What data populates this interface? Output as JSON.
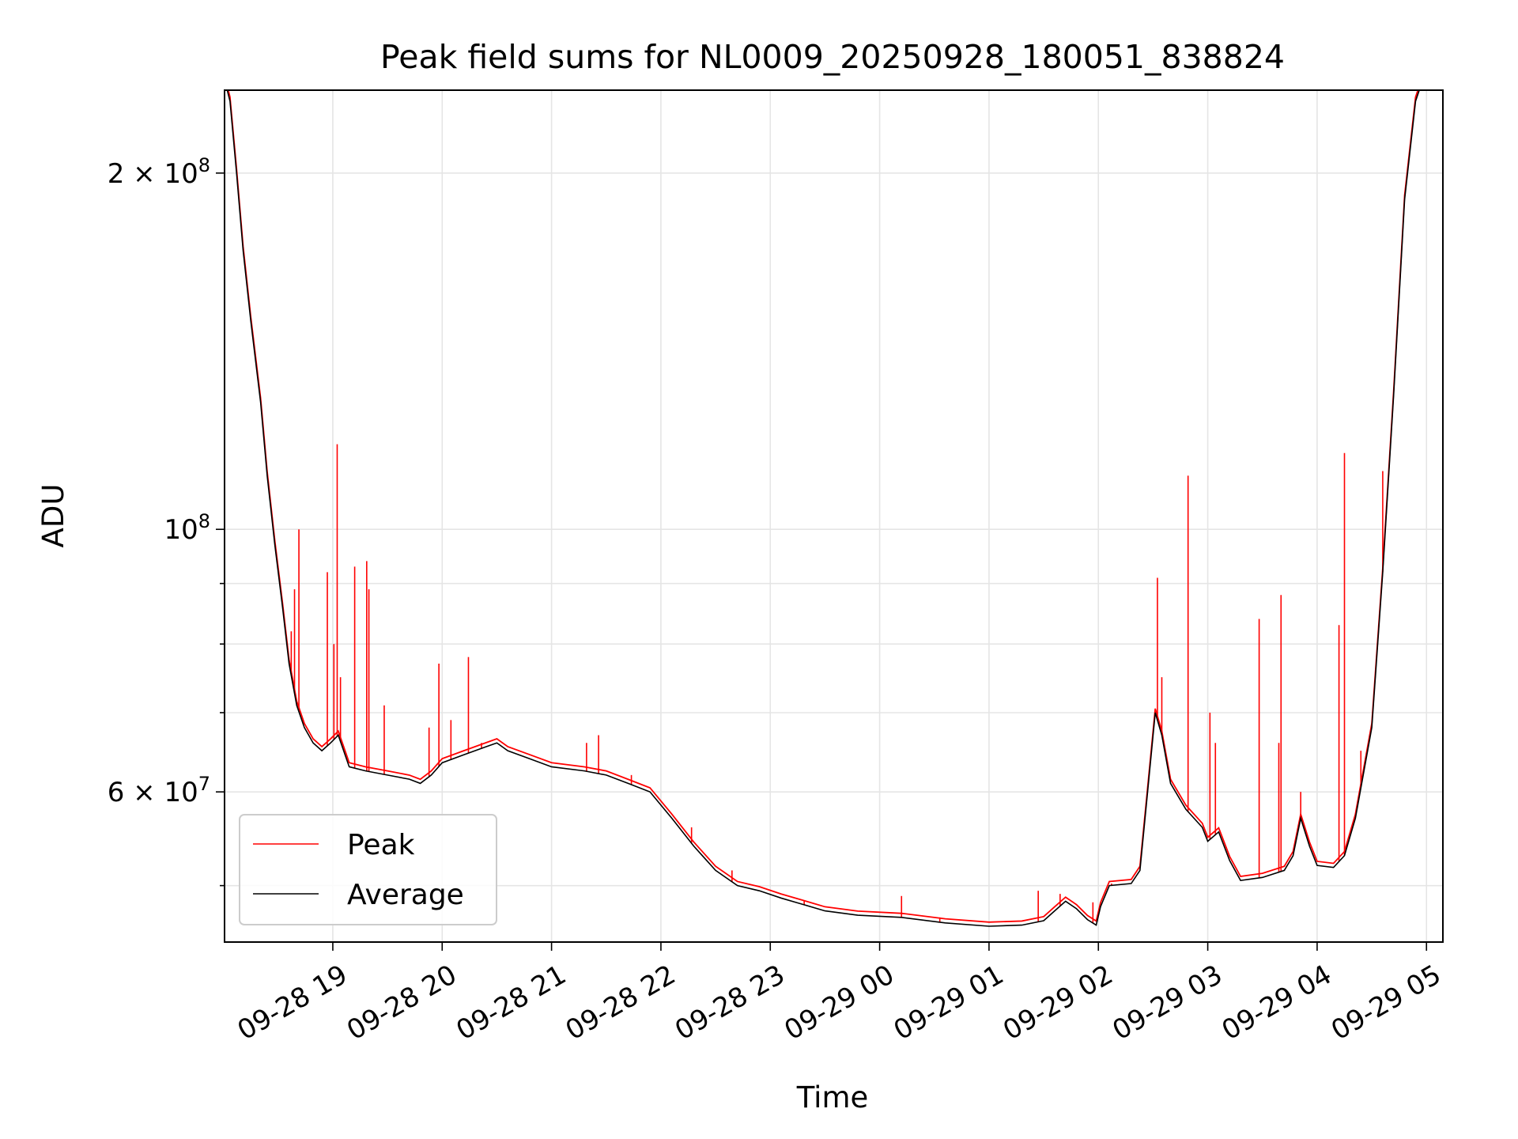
{
  "chart_data": {
    "type": "line",
    "title": "Peak field sums for NL0009_20250928_180051_838824",
    "xlabel": "Time",
    "ylabel": "ADU",
    "y_scale": "log",
    "ylim": [
      44800000,
      235000000
    ],
    "xlim_hours": [
      -0.99,
      10.15
    ],
    "x_ticks": [
      {
        "hour": 0,
        "label": "09-28 19"
      },
      {
        "hour": 1,
        "label": "09-28 20"
      },
      {
        "hour": 2,
        "label": "09-28 21"
      },
      {
        "hour": 3,
        "label": "09-28 22"
      },
      {
        "hour": 4,
        "label": "09-28 23"
      },
      {
        "hour": 5,
        "label": "09-29 00"
      },
      {
        "hour": 6,
        "label": "09-29 01"
      },
      {
        "hour": 7,
        "label": "09-29 02"
      },
      {
        "hour": 8,
        "label": "09-29 03"
      },
      {
        "hour": 9,
        "label": "09-29 04"
      },
      {
        "hour": 10,
        "label": "09-29 05"
      }
    ],
    "y_major_ticks": [
      {
        "value": 60000000,
        "base": "6 × 10",
        "exp": "7"
      },
      {
        "value": 100000000,
        "base": "10",
        "exp": "8"
      },
      {
        "value": 200000000,
        "base": "2 × 10",
        "exp": "8"
      }
    ],
    "y_minor_ticks": [
      50000000,
      70000000,
      80000000,
      90000000
    ],
    "x_hour_origin": "09-28 19:00",
    "series": [
      {
        "name": "Peak",
        "color": "#ff0000",
        "spikes": [
          [
            -0.38,
            82000000
          ],
          [
            -0.35,
            89000000
          ],
          [
            -0.31,
            100000000
          ],
          [
            -0.27,
            69000000
          ],
          [
            -0.05,
            92000000
          ],
          [
            0.01,
            80000000
          ],
          [
            0.04,
            118000000
          ],
          [
            0.07,
            75000000
          ],
          [
            0.2,
            93000000
          ],
          [
            0.31,
            94000000
          ],
          [
            0.33,
            89000000
          ],
          [
            0.47,
            71000000
          ],
          [
            0.88,
            68000000
          ],
          [
            0.97,
            77000000
          ],
          [
            1.08,
            69000000
          ],
          [
            1.24,
            78000000
          ],
          [
            1.36,
            66000000
          ],
          [
            2.32,
            66000000
          ],
          [
            2.43,
            67000000
          ],
          [
            2.73,
            62000000
          ],
          [
            3.28,
            56000000
          ],
          [
            3.65,
            51500000
          ],
          [
            4.31,
            48500000
          ],
          [
            5.2,
            49000000
          ],
          [
            5.55,
            47000000
          ],
          [
            6.45,
            49500000
          ],
          [
            6.65,
            49200000
          ],
          [
            6.95,
            48400000
          ],
          [
            7.12,
            50200000
          ],
          [
            7.54,
            91000000
          ],
          [
            7.58,
            75000000
          ],
          [
            7.82,
            111000000
          ],
          [
            8.02,
            70000000
          ],
          [
            8.07,
            66000000
          ],
          [
            8.47,
            84000000
          ],
          [
            8.65,
            66000000
          ],
          [
            8.67,
            88000000
          ],
          [
            8.85,
            60000000
          ],
          [
            9.2,
            83000000
          ],
          [
            9.25,
            116000000
          ],
          [
            9.4,
            65000000
          ],
          [
            9.6,
            112000000
          ]
        ]
      },
      {
        "name": "Average",
        "color": "#000000",
        "points": [
          [
            -0.99,
            240000000
          ],
          [
            -0.94,
            230000000
          ],
          [
            -0.88,
            200000000
          ],
          [
            -0.82,
            172000000
          ],
          [
            -0.75,
            150000000
          ],
          [
            -0.66,
            128000000
          ],
          [
            -0.6,
            111000000
          ],
          [
            -0.53,
            97000000
          ],
          [
            -0.46,
            86000000
          ],
          [
            -0.4,
            77000000
          ],
          [
            -0.33,
            71000000
          ],
          [
            -0.26,
            68000000
          ],
          [
            -0.18,
            66000000
          ],
          [
            -0.1,
            65000000
          ],
          [
            -0.02,
            66000000
          ],
          [
            0.05,
            67000000
          ],
          [
            0.15,
            63000000
          ],
          [
            0.3,
            62500000
          ],
          [
            0.5,
            62000000
          ],
          [
            0.7,
            61500000
          ],
          [
            0.8,
            61000000
          ],
          [
            0.9,
            62000000
          ],
          [
            1.0,
            63500000
          ],
          [
            1.2,
            64500000
          ],
          [
            1.4,
            65500000
          ],
          [
            1.5,
            66000000
          ],
          [
            1.6,
            65000000
          ],
          [
            1.8,
            64000000
          ],
          [
            2.0,
            63000000
          ],
          [
            2.3,
            62500000
          ],
          [
            2.5,
            62000000
          ],
          [
            2.7,
            61000000
          ],
          [
            2.9,
            60000000
          ],
          [
            3.1,
            57000000
          ],
          [
            3.3,
            54000000
          ],
          [
            3.5,
            51500000
          ],
          [
            3.7,
            50000000
          ],
          [
            3.9,
            49500000
          ],
          [
            4.1,
            48800000
          ],
          [
            4.3,
            48200000
          ],
          [
            4.5,
            47600000
          ],
          [
            4.8,
            47200000
          ],
          [
            5.2,
            47000000
          ],
          [
            5.6,
            46500000
          ],
          [
            6.0,
            46200000
          ],
          [
            6.3,
            46300000
          ],
          [
            6.5,
            46700000
          ],
          [
            6.6,
            47600000
          ],
          [
            6.7,
            48500000
          ],
          [
            6.8,
            47800000
          ],
          [
            6.9,
            46800000
          ],
          [
            6.98,
            46300000
          ],
          [
            7.02,
            48000000
          ],
          [
            7.1,
            50000000
          ],
          [
            7.3,
            50200000
          ],
          [
            7.38,
            51500000
          ],
          [
            7.45,
            60000000
          ],
          [
            7.52,
            70000000
          ],
          [
            7.58,
            67000000
          ],
          [
            7.66,
            61000000
          ],
          [
            7.8,
            58000000
          ],
          [
            7.95,
            56000000
          ],
          [
            8.0,
            54500000
          ],
          [
            8.1,
            55500000
          ],
          [
            8.2,
            52500000
          ],
          [
            8.3,
            50500000
          ],
          [
            8.5,
            50800000
          ],
          [
            8.7,
            51500000
          ],
          [
            8.78,
            53000000
          ],
          [
            8.85,
            57000000
          ],
          [
            8.93,
            54000000
          ],
          [
            9.0,
            52000000
          ],
          [
            9.15,
            51800000
          ],
          [
            9.25,
            53000000
          ],
          [
            9.35,
            57000000
          ],
          [
            9.5,
            68000000
          ],
          [
            9.6,
            92000000
          ],
          [
            9.7,
            130000000
          ],
          [
            9.8,
            190000000
          ],
          [
            9.9,
            230000000
          ],
          [
            10.0,
            245000000
          ]
        ]
      }
    ],
    "legend": {
      "position": "bottom-left",
      "entries": [
        "Peak",
        "Average"
      ]
    },
    "grid": true
  }
}
